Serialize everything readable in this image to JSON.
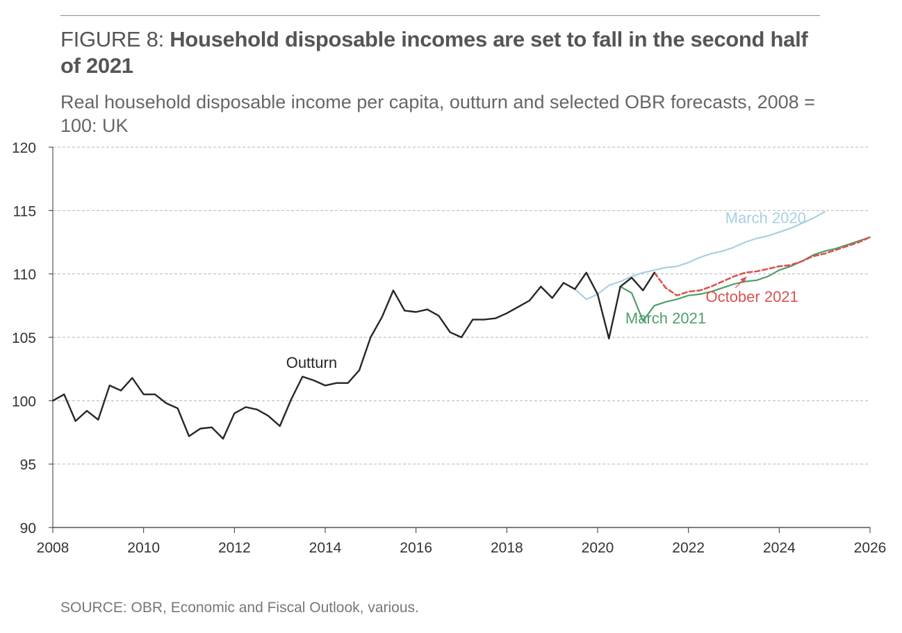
{
  "header": {
    "figure_label": "FIGURE 8:",
    "headline": "Household disposable incomes are set to fall in the second half of 2021",
    "subtitle": "Real household disposable income per capita, outturn and selected OBR forecasts, 2008 = 100: UK"
  },
  "footer": {
    "source": "SOURCE: OBR, Economic and Fiscal Outlook, various."
  },
  "colors": {
    "outturn": "#262626",
    "march_2020": "#a8cfe3",
    "march_2021": "#4f9e6a",
    "october_2021": "#d9534f",
    "grid": "#b3b3b3",
    "axis": "#333333"
  },
  "chart_data": {
    "type": "line",
    "title": "Household disposable incomes are set to fall in the second half of 2021",
    "subtitle": "Real household disposable income per capita, outturn and selected OBR forecasts, 2008 = 100: UK",
    "xlabel": "",
    "ylabel": "",
    "xlim": [
      2008,
      2026
    ],
    "ylim": [
      90,
      120
    ],
    "x_ticks": [
      2008,
      2010,
      2012,
      2014,
      2016,
      2018,
      2020,
      2022,
      2024,
      2026
    ],
    "y_ticks": [
      90,
      95,
      100,
      105,
      110,
      115,
      120
    ],
    "grid": "horizontal dashed",
    "legend": "none (series labelled directly on the chart)",
    "series": [
      {
        "name": "March 2020",
        "key": "march_2020",
        "style": "solid",
        "points": [
          [
            2019.5,
            108.8
          ],
          [
            2019.75,
            108.0
          ],
          [
            2020.0,
            108.4
          ],
          [
            2020.25,
            109.1
          ],
          [
            2020.5,
            109.4
          ],
          [
            2020.75,
            109.8
          ],
          [
            2021.0,
            110.1
          ],
          [
            2021.25,
            110.3
          ],
          [
            2021.5,
            110.5
          ],
          [
            2021.75,
            110.6
          ],
          [
            2022.0,
            110.9
          ],
          [
            2022.25,
            111.3
          ],
          [
            2022.5,
            111.6
          ],
          [
            2022.75,
            111.8
          ],
          [
            2023.0,
            112.1
          ],
          [
            2023.25,
            112.5
          ],
          [
            2023.5,
            112.8
          ],
          [
            2023.75,
            113.0
          ],
          [
            2024.0,
            113.3
          ],
          [
            2024.25,
            113.6
          ],
          [
            2024.5,
            114.0
          ],
          [
            2024.75,
            114.4
          ],
          [
            2025.0,
            114.9
          ]
        ]
      },
      {
        "name": "March 2021",
        "key": "march_2021",
        "style": "solid",
        "points": [
          [
            2020.5,
            109.0
          ],
          [
            2020.75,
            108.5
          ],
          [
            2021.0,
            106.3
          ],
          [
            2021.25,
            107.5
          ],
          [
            2021.5,
            107.8
          ],
          [
            2021.75,
            108.0
          ],
          [
            2022.0,
            108.3
          ],
          [
            2022.25,
            108.4
          ],
          [
            2022.5,
            108.6
          ],
          [
            2022.75,
            108.9
          ],
          [
            2023.0,
            109.2
          ],
          [
            2023.25,
            109.4
          ],
          [
            2023.5,
            109.5
          ],
          [
            2023.75,
            109.8
          ],
          [
            2024.0,
            110.3
          ],
          [
            2024.25,
            110.6
          ],
          [
            2024.5,
            111.0
          ],
          [
            2024.75,
            111.5
          ],
          [
            2025.0,
            111.8
          ],
          [
            2025.25,
            112.0
          ],
          [
            2025.5,
            112.3
          ],
          [
            2025.75,
            112.6
          ],
          [
            2026.0,
            112.9
          ]
        ]
      },
      {
        "name": "October 2021",
        "key": "october_2021",
        "style": "dashed",
        "points": [
          [
            2021.25,
            110.1
          ],
          [
            2021.5,
            108.9
          ],
          [
            2021.75,
            108.3
          ],
          [
            2022.0,
            108.6
          ],
          [
            2022.25,
            108.7
          ],
          [
            2022.5,
            109.0
          ],
          [
            2022.75,
            109.4
          ],
          [
            2023.0,
            109.8
          ],
          [
            2023.25,
            110.1
          ],
          [
            2023.5,
            110.2
          ],
          [
            2023.75,
            110.4
          ],
          [
            2024.0,
            110.6
          ],
          [
            2024.25,
            110.7
          ],
          [
            2024.5,
            111.0
          ],
          [
            2024.75,
            111.4
          ],
          [
            2025.0,
            111.6
          ],
          [
            2025.25,
            111.9
          ],
          [
            2025.5,
            112.2
          ],
          [
            2025.75,
            112.5
          ],
          [
            2026.0,
            112.9
          ]
        ]
      },
      {
        "name": "Outturn",
        "key": "outturn",
        "style": "solid",
        "points": [
          [
            2008.0,
            100.0
          ],
          [
            2008.25,
            100.5
          ],
          [
            2008.5,
            98.4
          ],
          [
            2008.75,
            99.2
          ],
          [
            2009.0,
            98.5
          ],
          [
            2009.25,
            101.2
          ],
          [
            2009.5,
            100.8
          ],
          [
            2009.75,
            101.8
          ],
          [
            2010.0,
            100.5
          ],
          [
            2010.25,
            100.5
          ],
          [
            2010.5,
            99.8
          ],
          [
            2010.75,
            99.4
          ],
          [
            2011.0,
            97.2
          ],
          [
            2011.25,
            97.8
          ],
          [
            2011.5,
            97.9
          ],
          [
            2011.75,
            97.0
          ],
          [
            2012.0,
            99.0
          ],
          [
            2012.25,
            99.5
          ],
          [
            2012.5,
            99.3
          ],
          [
            2012.75,
            98.8
          ],
          [
            2013.0,
            98.0
          ],
          [
            2013.25,
            100.1
          ],
          [
            2013.5,
            101.9
          ],
          [
            2013.75,
            101.6
          ],
          [
            2014.0,
            101.2
          ],
          [
            2014.25,
            101.4
          ],
          [
            2014.5,
            101.4
          ],
          [
            2014.75,
            102.4
          ],
          [
            2015.0,
            105.0
          ],
          [
            2015.25,
            106.6
          ],
          [
            2015.5,
            108.7
          ],
          [
            2015.75,
            107.1
          ],
          [
            2016.0,
            107.0
          ],
          [
            2016.25,
            107.2
          ],
          [
            2016.5,
            106.7
          ],
          [
            2016.75,
            105.4
          ],
          [
            2017.0,
            105.0
          ],
          [
            2017.25,
            106.4
          ],
          [
            2017.5,
            106.4
          ],
          [
            2017.75,
            106.5
          ],
          [
            2018.0,
            106.9
          ],
          [
            2018.25,
            107.4
          ],
          [
            2018.5,
            107.9
          ],
          [
            2018.75,
            109.0
          ],
          [
            2019.0,
            108.1
          ],
          [
            2019.25,
            109.3
          ],
          [
            2019.5,
            108.8
          ],
          [
            2019.75,
            110.1
          ],
          [
            2020.0,
            108.4
          ],
          [
            2020.25,
            104.9
          ],
          [
            2020.5,
            109.0
          ],
          [
            2020.75,
            109.7
          ],
          [
            2021.0,
            108.7
          ],
          [
            2021.25,
            110.1
          ]
        ]
      }
    ],
    "annotations": [
      {
        "text": "Outturn",
        "series": "outturn",
        "at": [
          2013.7,
          102.6
        ]
      },
      {
        "text": "March 2020",
        "series": "march_2020",
        "at": [
          2023.7,
          114.0
        ]
      },
      {
        "text": "March 2021",
        "series": "march_2021",
        "at": [
          2021.5,
          106.1
        ]
      },
      {
        "text": "October 2021",
        "series": "october_2021",
        "at": [
          2023.4,
          107.8
        ],
        "arrow_to": [
          2023.25,
          110.0
        ]
      }
    ]
  }
}
